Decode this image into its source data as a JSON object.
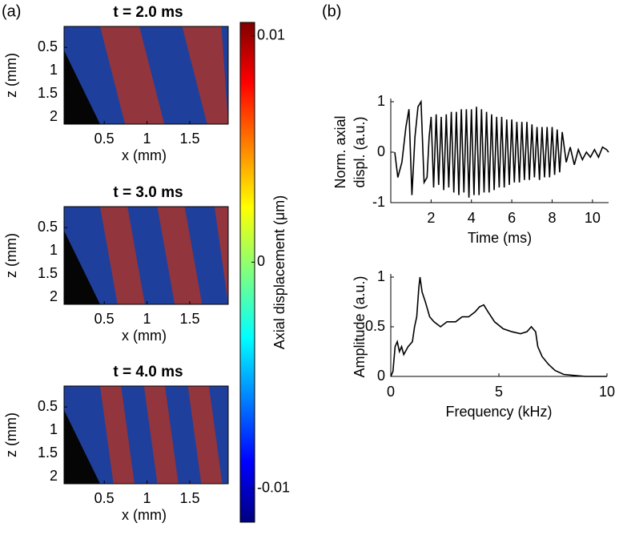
{
  "panel_labels": [
    "(a)",
    "(b)"
  ],
  "chart_data": [
    {
      "type": "heatmap",
      "title": "t = 2.0 ms",
      "xlabel": "x (mm)",
      "ylabel": "z (mm)",
      "xlim": [
        0.03,
        1.95
      ],
      "xticks": [
        0.5,
        1,
        1.5
      ],
      "ylim": [
        0.05,
        2.15
      ],
      "yticks": [
        0.5,
        1,
        1.5,
        2
      ]
    },
    {
      "type": "heatmap",
      "title": "t = 3.0 ms",
      "xlabel": "x (mm)",
      "ylabel": "z (mm)",
      "xlim": [
        0.03,
        1.95
      ],
      "xticks": [
        0.5,
        1,
        1.5
      ],
      "ylim": [
        0.05,
        2.15
      ],
      "yticks": [
        0.5,
        1,
        1.5,
        2
      ]
    },
    {
      "type": "heatmap",
      "title": "t = 4.0 ms",
      "xlabel": "x (mm)",
      "ylabel": "z (mm)",
      "xlim": [
        0.03,
        1.95
      ],
      "xticks": [
        0.5,
        1,
        1.5
      ],
      "ylim": [
        0.05,
        2.15
      ],
      "yticks": [
        0.5,
        1,
        1.5,
        2
      ]
    },
    {
      "type": "colorbar",
      "label": "Axial displacement (μm)",
      "ylim": [
        -0.0115,
        0.0106
      ],
      "yticks": [
        0.01,
        0,
        -0.01
      ]
    },
    {
      "type": "line",
      "xlabel": "Time (ms)",
      "ylabel": [
        "Norm. axial",
        "displ. (a.u.)"
      ],
      "color": "#000000",
      "xlim": [
        0,
        10.8
      ],
      "xticks": [
        2,
        4,
        6,
        8,
        10
      ],
      "ylim": [
        -1,
        1
      ],
      "yticks": [
        -1,
        0,
        1
      ],
      "x": [
        0.2,
        0.35,
        0.55,
        0.75,
        0.9,
        1.05,
        1.2,
        1.35,
        1.5,
        1.65,
        1.8,
        1.9,
        2,
        2.125,
        2.25,
        2.375,
        2.5,
        2.625,
        2.75,
        2.875,
        3,
        3.125,
        3.25,
        3.375,
        3.5,
        3.625,
        3.75,
        3.875,
        4,
        4.125,
        4.25,
        4.375,
        4.5,
        4.625,
        4.75,
        4.875,
        5,
        5.125,
        5.25,
        5.375,
        5.5,
        5.625,
        5.75,
        5.875,
        6,
        6.125,
        6.25,
        6.375,
        6.5,
        6.625,
        6.75,
        6.875,
        7,
        7.125,
        7.25,
        7.375,
        7.5,
        7.625,
        7.75,
        7.875,
        8,
        8.125,
        8.25,
        8.375,
        8.5,
        8.7,
        8.9,
        9.1,
        9.3,
        9.5,
        9.7,
        9.9,
        10.1,
        10.3,
        10.5,
        10.7,
        10.8
      ],
      "values": [
        0,
        -0.5,
        -0.2,
        0.5,
        0.85,
        -0.85,
        0.3,
        0.9,
        1,
        -0.6,
        -0.5,
        0.3,
        0.7,
        -0.7,
        0.75,
        -0.65,
        0.7,
        -0.75,
        0.75,
        -0.7,
        0.8,
        -0.8,
        0.8,
        -0.85,
        0.85,
        -0.8,
        0.85,
        -0.9,
        0.85,
        -0.85,
        0.9,
        -0.85,
        0.85,
        -0.8,
        0.8,
        -0.8,
        0.75,
        -0.75,
        0.7,
        -0.7,
        0.7,
        -0.7,
        0.65,
        -0.65,
        0.65,
        -0.6,
        0.6,
        -0.6,
        0.6,
        -0.55,
        0.6,
        -0.55,
        0.55,
        -0.5,
        0.5,
        -0.55,
        0.5,
        -0.5,
        0.5,
        -0.5,
        0.5,
        -0.45,
        0.45,
        -0.4,
        0.4,
        -0.2,
        0.1,
        -0.25,
        0.05,
        -0.15,
        0,
        -0.1,
        0.05,
        -0.1,
        0.1,
        0.05,
        0
      ]
    },
    {
      "type": "line",
      "xlabel": "Frequency (kHz)",
      "ylabel": [
        "Amplitude (a.u.)"
      ],
      "color": "#000000",
      "xlim": [
        0,
        10
      ],
      "xticks": [
        0,
        5,
        10
      ],
      "ylim": [
        0,
        1
      ],
      "yticks": [
        0,
        0.5,
        1
      ],
      "x": [
        0,
        0.1,
        0.2,
        0.3,
        0.4,
        0.5,
        0.6,
        0.8,
        1,
        1.1,
        1.2,
        1.3,
        1.35,
        1.45,
        1.6,
        1.8,
        2,
        2.3,
        2.6,
        3,
        3.3,
        3.6,
        3.9,
        4.1,
        4.3,
        4.5,
        4.8,
        5.2,
        5.6,
        6,
        6.3,
        6.5,
        6.7,
        6.8,
        7,
        7.3,
        7.6,
        8,
        8.5,
        9,
        10
      ],
      "values": [
        0,
        0.05,
        0.3,
        0.35,
        0.25,
        0.3,
        0.22,
        0.3,
        0.35,
        0.5,
        0.6,
        0.9,
        1,
        0.85,
        0.75,
        0.6,
        0.55,
        0.5,
        0.55,
        0.55,
        0.6,
        0.6,
        0.65,
        0.7,
        0.72,
        0.65,
        0.55,
        0.48,
        0.45,
        0.43,
        0.45,
        0.5,
        0.45,
        0.3,
        0.2,
        0.12,
        0.06,
        0.02,
        0.01,
        0,
        0
      ]
    }
  ]
}
